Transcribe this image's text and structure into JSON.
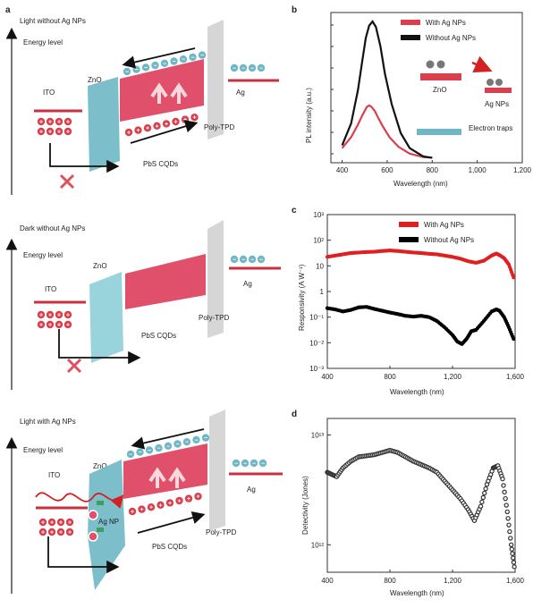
{
  "panel_letters": {
    "a": "a",
    "b": "b",
    "c": "c",
    "d": "d"
  },
  "diagrams": [
    {
      "title": "Light without Ag NPs",
      "energy_level": "Energy level",
      "ito": "ITO",
      "zno": "ZnO",
      "ag": "Ag",
      "poly_tpd": "Poly-TPD",
      "pbs": "PbS CQDs",
      "has_holes": true,
      "has_electrons": true,
      "has_photon": false,
      "has_agnp": false
    },
    {
      "title": "Dark without Ag NPs",
      "energy_level": "Energy level",
      "ito": "ITO",
      "zno": "ZnO",
      "ag": "Ag",
      "poly_tpd": "Poly-TPD",
      "pbs": "PbS CQDs",
      "has_holes": false,
      "has_electrons": false,
      "has_photon": false,
      "has_agnp": false
    },
    {
      "title": "Light with Ag NPs",
      "energy_level": "Energy level",
      "ito": "ITO",
      "zno": "ZnO",
      "ag": "Ag",
      "poly_tpd": "Poly-TPD",
      "pbs": "PbS CQDs",
      "ag_np": "Ag NP",
      "has_holes": true,
      "has_electrons": true,
      "has_photon": true,
      "has_agnp": true
    }
  ],
  "colors": {
    "red": "#d9404e",
    "pink": "#e0506a",
    "teal": "#6fb7c5",
    "gray": "#d6d6d6",
    "light_teal": "#8ecfd9"
  },
  "chart_data": [
    {
      "id": "b",
      "type": "line",
      "xlabel": "Wavelength (nm)",
      "ylabel": "PL intensity (a.u.)",
      "xlim": [
        350,
        1200
      ],
      "xticks": [
        "400",
        "600",
        "800",
        "1,000",
        "1,200"
      ],
      "series": [
        {
          "name": "With Ag NPs",
          "color": "#d9404e",
          "x": [
            400,
            440,
            470,
            490,
            510,
            520,
            530,
            545,
            560,
            580,
            610,
            650,
            700,
            760,
            800
          ],
          "y": [
            0.08,
            0.16,
            0.25,
            0.32,
            0.38,
            0.39,
            0.38,
            0.35,
            0.3,
            0.24,
            0.16,
            0.09,
            0.04,
            0.015,
            0.01
          ]
        },
        {
          "name": "Without Ag NPs",
          "color": "#111111",
          "x": [
            400,
            440,
            470,
            490,
            505,
            520,
            535,
            550,
            570,
            590,
            620,
            660,
            700,
            760,
            800
          ],
          "y": [
            0.1,
            0.26,
            0.5,
            0.72,
            0.88,
            0.97,
            1.0,
            0.96,
            0.82,
            0.62,
            0.4,
            0.19,
            0.08,
            0.02,
            0.01
          ]
        }
      ],
      "inset": {
        "zno": "ZnO",
        "ag_nps": "Ag NPs",
        "electron_traps": "Electron traps"
      }
    },
    {
      "id": "c",
      "type": "scatter",
      "xlabel": "Wavelength (nm)",
      "ylabel": "Responsivity (A W⁻¹)",
      "xlim": [
        400,
        1600
      ],
      "ylog": true,
      "ylim_exp": [
        -3,
        3
      ],
      "xticks": [
        "400",
        "800",
        "1,200",
        "1,600"
      ],
      "yticks": [
        "10³",
        "10²",
        "10",
        "1",
        "10⁻¹",
        "10⁻²",
        "10⁻³"
      ],
      "series": [
        {
          "name": "With Ag NPs",
          "color": "#e02020",
          "x": [
            400,
            450,
            500,
            550,
            600,
            650,
            700,
            750,
            800,
            850,
            900,
            950,
            1000,
            1050,
            1100,
            1150,
            1200,
            1250,
            1300,
            1350,
            1400,
            1450,
            1480,
            1500,
            1530,
            1560,
            1590
          ],
          "y": [
            1.35,
            1.4,
            1.45,
            1.5,
            1.52,
            1.54,
            1.55,
            1.58,
            1.6,
            1.58,
            1.55,
            1.52,
            1.5,
            1.47,
            1.45,
            1.4,
            1.35,
            1.28,
            1.18,
            1.12,
            1.2,
            1.4,
            1.48,
            1.42,
            1.3,
            1.05,
            0.55
          ]
        },
        {
          "name": "Without Ag NPs",
          "color": "#000000",
          "x": [
            400,
            450,
            500,
            550,
            600,
            650,
            700,
            750,
            800,
            850,
            900,
            950,
            1000,
            1050,
            1100,
            1150,
            1200,
            1230,
            1260,
            1290,
            1320,
            1350,
            1400,
            1450,
            1480,
            1500,
            1530,
            1560,
            1590
          ],
          "y": [
            -0.65,
            -0.7,
            -0.78,
            -0.72,
            -0.62,
            -0.6,
            -0.68,
            -0.75,
            -0.82,
            -0.88,
            -0.95,
            -0.98,
            -0.95,
            -1.0,
            -1.15,
            -1.4,
            -1.7,
            -1.95,
            -2.05,
            -1.85,
            -1.55,
            -1.5,
            -1.15,
            -0.78,
            -0.7,
            -0.75,
            -1.0,
            -1.4,
            -1.85
          ]
        }
      ]
    },
    {
      "id": "d",
      "type": "scatter",
      "xlabel": "Wavelength (nm)",
      "ylabel": "Detectivity (Jones)",
      "xlim": [
        400,
        1600
      ],
      "ylog": true,
      "yticks": [
        "10¹³",
        "10¹²"
      ],
      "xticks": [
        "400",
        "800",
        "1,200",
        "1,600"
      ],
      "series": [
        {
          "name": "Detectivity",
          "color": "#333333",
          "x": [
            400,
            430,
            460,
            500,
            550,
            600,
            650,
            700,
            750,
            800,
            850,
            900,
            950,
            1000,
            1050,
            1100,
            1150,
            1200,
            1250,
            1300,
            1340,
            1380,
            1420,
            1460,
            1490,
            1520,
            1550,
            1575,
            1595
          ],
          "y": [
            12.66,
            12.64,
            12.62,
            12.7,
            12.76,
            12.8,
            12.81,
            12.82,
            12.84,
            12.86,
            12.84,
            12.8,
            12.76,
            12.73,
            12.7,
            12.66,
            12.58,
            12.5,
            12.42,
            12.32,
            12.22,
            12.35,
            12.55,
            12.7,
            12.72,
            12.6,
            12.3,
            12.0,
            11.8
          ]
        }
      ]
    }
  ]
}
